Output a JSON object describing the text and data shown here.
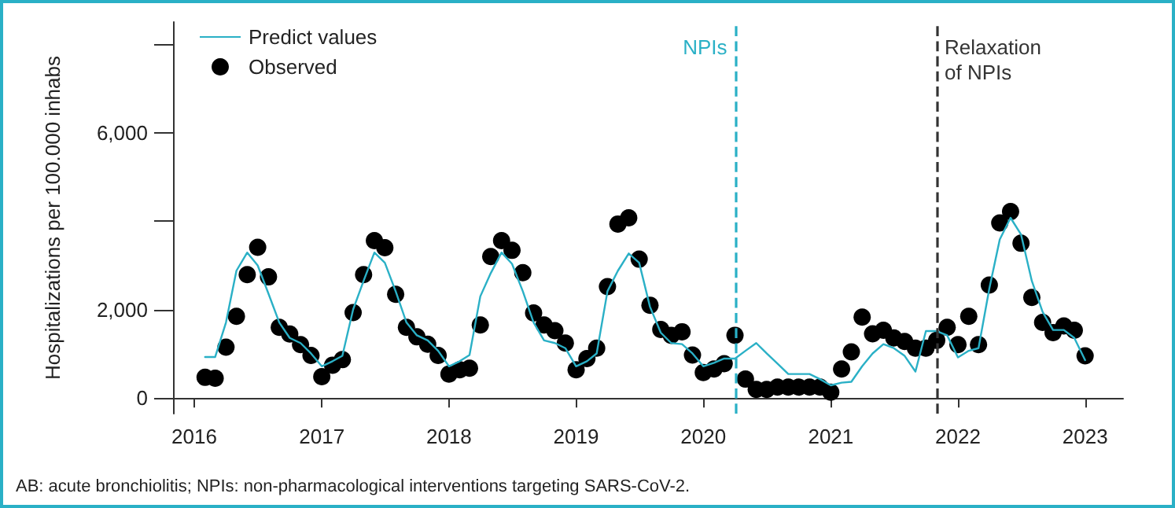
{
  "chart_data": {
    "type": "scatter",
    "ylabel": "Hospitalizations per 100.000 inhabs",
    "x": [
      "2016-02",
      "2016-03",
      "2016-04",
      "2016-05",
      "2016-06",
      "2016-07",
      "2016-08",
      "2016-09",
      "2016-10",
      "2016-11",
      "2016-12",
      "2017-01",
      "2017-02",
      "2017-03",
      "2017-04",
      "2017-05",
      "2017-06",
      "2017-07",
      "2017-08",
      "2017-09",
      "2017-10",
      "2017-11",
      "2017-12",
      "2018-01",
      "2018-02",
      "2018-03",
      "2018-04",
      "2018-05",
      "2018-06",
      "2018-07",
      "2018-08",
      "2018-09",
      "2018-10",
      "2018-11",
      "2018-12",
      "2019-01",
      "2019-02",
      "2019-03",
      "2019-04",
      "2019-05",
      "2019-06",
      "2019-07",
      "2019-08",
      "2019-09",
      "2019-10",
      "2019-11",
      "2019-12",
      "2020-01",
      "2020-02",
      "2020-03",
      "2020-04",
      "2020-05",
      "2020-06",
      "2020-07",
      "2020-08",
      "2020-09",
      "2020-10",
      "2020-11",
      "2020-12",
      "2021-01",
      "2021-02",
      "2021-03",
      "2021-04",
      "2021-05",
      "2021-06",
      "2021-07",
      "2021-08",
      "2021-09",
      "2021-10",
      "2021-11",
      "2021-12",
      "2022-01",
      "2022-02",
      "2022-03",
      "2022-04",
      "2022-05",
      "2022-06",
      "2022-07",
      "2022-08",
      "2022-09",
      "2022-10",
      "2022-11",
      "2022-12",
      "2023-01"
    ],
    "series": [
      {
        "name": "Predict values",
        "type": "line",
        "color": "#2ab0c6",
        "marker": "none",
        "line_style": "solid",
        "values": [
          930,
          930,
          1710,
          2880,
          3290,
          3000,
          2360,
          1710,
          1360,
          1245,
          1010,
          720,
          835,
          955,
          2005,
          2650,
          3290,
          3060,
          2415,
          1710,
          1420,
          1305,
          1070,
          720,
          835,
          975,
          2300,
          2825,
          3290,
          3035,
          2415,
          1710,
          1305,
          1245,
          1130,
          720,
          835,
          1010,
          2415,
          2880,
          3270,
          3060,
          2065,
          1480,
          1245,
          1220,
          1010,
          720,
          800,
          895,
          895,
          1070,
          1245,
          1010,
          780,
          545,
          545,
          545,
          430,
          290,
          350,
          370,
          720,
          1010,
          1220,
          1130,
          955,
          600,
          1515,
          1515,
          1420,
          920,
          1070,
          1130,
          2475,
          3585,
          4075,
          3700,
          2650,
          1950,
          1540,
          1540,
          1360,
          860
        ]
      },
      {
        "name": "Observed",
        "color": "#000000",
        "marker": "circle",
        "values": [
          470,
          450,
          1150,
          1850,
          2790,
          3410,
          2740,
          1600,
          1450,
          1210,
          965,
          485,
          745,
          870,
          1935,
          2790,
          3560,
          3400,
          2345,
          1600,
          1385,
          1220,
          965,
          545,
          640,
          675,
          1655,
          3200,
          3560,
          3340,
          2835,
          1925,
          1655,
          1525,
          1245,
          640,
          895,
          1130,
          2520,
          3935,
          4075,
          3140,
          2100,
          1550,
          1420,
          1500,
          975,
          580,
          660,
          780,
          1420,
          430,
          195,
          195,
          250,
          250,
          250,
          250,
          250,
          135,
          660,
          1045,
          1830,
          1455,
          1535,
          1360,
          1280,
          1130,
          1130,
          1305,
          1600,
          1210,
          1850,
          1210,
          2555,
          3960,
          4215,
          3500,
          2275,
          1710,
          1480,
          1630,
          1535,
          955
        ]
      }
    ],
    "xlim": [
      "2015-11-01",
      "2023-04-20"
    ],
    "xticks": [
      "2016",
      "2017",
      "2018",
      "2019",
      "2020",
      "2021",
      "2022",
      "2023"
    ],
    "ylim": [
      -350,
      8500
    ],
    "yticks": [
      0,
      {
        "value": 2000,
        "label": "2,000"
      },
      {
        "value": 4000,
        "label": null
      },
      {
        "value": 6000,
        "label": "6,000"
      },
      {
        "value": 8000,
        "label": null
      }
    ],
    "ref_lines": [
      {
        "axis": "x",
        "value": "2020-04",
        "label": "NPIs",
        "color": "#2ab0c6",
        "line_style": "dashed"
      },
      {
        "axis": "x",
        "value": "2021-11",
        "label": "Relaxation\nof NPIs",
        "color": "#333333",
        "line_style": "dashed"
      }
    ],
    "legend": "top left",
    "grid": false,
    "annotations": [
      "AB: acute bronchiolitis; NPIs: non-pharmacological interventions targeting SARS-CoV-2."
    ]
  }
}
